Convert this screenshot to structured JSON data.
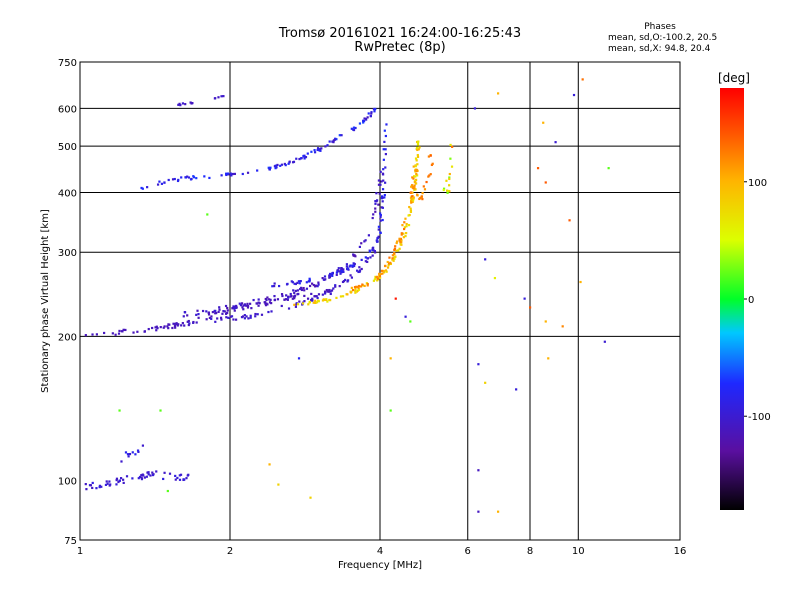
{
  "header": {
    "title_line1": "Tromsø 20161021 16:24:00-16:25:43",
    "title_line2": "RwPretec (8p)"
  },
  "stats": {
    "heading": "Phases",
    "line_o": "mean, sd,O:-100.2, 20.5",
    "line_x": "mean, sd,X:  94.8, 20.4"
  },
  "colorbar": {
    "label": "[deg]",
    "range": [
      -180,
      180
    ],
    "ticks": [
      100,
      0,
      -100
    ]
  },
  "chart_data": {
    "type": "scatter",
    "xlabel": "Frequency [MHz]",
    "ylabel": "Stationary phase Virtual Height [km]",
    "xscale": "log",
    "yscale": "log",
    "xlim": [
      1,
      16
    ],
    "ylim": [
      75,
      750
    ],
    "xticks": [
      1,
      2,
      4,
      6,
      8,
      10,
      16
    ],
    "yticks": [
      75,
      100,
      200,
      300,
      400,
      500,
      600,
      750
    ],
    "vgrid": [
      2,
      4,
      6,
      8,
      10
    ],
    "hgrid": [
      200,
      300,
      400,
      500,
      600
    ],
    "grid": true,
    "color_variable": "phase [deg]",
    "traces": [
      {
        "x": [
          1.0,
          1.15,
          1.3,
          1.45,
          1.6,
          1.75,
          1.9,
          2.05,
          2.2,
          2.4,
          2.6,
          2.8,
          3.0,
          3.2
        ],
        "y": [
          202,
          203,
          205,
          208,
          212,
          218,
          224,
          229,
          232,
          236,
          241,
          244,
          246,
          250
        ],
        "spread": 0.012,
        "n": 110,
        "phase": [
          -115,
          -110
        ]
      },
      {
        "x": [
          1.5,
          1.7,
          1.9,
          2.1,
          2.3,
          2.5,
          2.7,
          2.9,
          3.1,
          3.3,
          3.5,
          3.7,
          3.9
        ],
        "y": [
          212,
          214,
          217,
          219,
          222,
          228,
          233,
          238,
          244,
          255,
          265,
          280,
          300
        ],
        "spread": 0.01,
        "n": 80,
        "phase": [
          -115,
          -95
        ]
      },
      {
        "x": [
          1.6,
          1.8,
          2.0,
          2.2,
          2.4,
          2.6,
          2.8,
          3.0,
          3.2,
          3.4,
          3.6,
          3.8,
          3.95,
          4.05
        ],
        "y": [
          222,
          226,
          230,
          235,
          240,
          244,
          250,
          258,
          268,
          282,
          300,
          330,
          380,
          470
        ],
        "spread": 0.012,
        "n": 110,
        "phase": [
          -120,
          -95
        ]
      },
      {
        "x": [
          2.3,
          2.6,
          2.9,
          3.1,
          3.3,
          3.5,
          3.7,
          3.9,
          4.0,
          4.05,
          4.08,
          4.1
        ],
        "y": [
          255,
          258,
          262,
          267,
          272,
          280,
          290,
          305,
          330,
          380,
          450,
          560
        ],
        "spread": 0.008,
        "n": 90,
        "phase": [
          -105,
          -70
        ]
      },
      {
        "x": [
          1.3,
          1.45,
          1.6,
          1.8,
          2.0,
          2.2,
          2.4,
          2.6,
          2.8,
          3.0,
          3.2,
          3.4,
          3.6,
          3.8,
          3.95
        ],
        "y": [
          405,
          420,
          428,
          432,
          436,
          442,
          450,
          460,
          475,
          490,
          510,
          530,
          555,
          580,
          605
        ],
        "spread": 0.008,
        "n": 110,
        "phase": [
          -110,
          -65
        ]
      },
      {
        "x": [
          1.55,
          1.6,
          1.65,
          1.7
        ],
        "y": [
          610,
          612,
          615,
          618
        ],
        "spread": 0.004,
        "n": 8,
        "phase": [
          -110,
          -100
        ]
      },
      {
        "x": [
          1.85,
          1.9,
          1.95
        ],
        "y": [
          630,
          632,
          635
        ],
        "spread": 0.004,
        "n": 5,
        "phase": [
          -110,
          -100
        ]
      },
      {
        "x": [
          2.7,
          3.0,
          3.3,
          3.6,
          3.9,
          4.1,
          4.3,
          4.5,
          4.6,
          4.7,
          4.75,
          4.78
        ],
        "y": [
          232,
          236,
          242,
          250,
          262,
          275,
          295,
          330,
          370,
          420,
          470,
          520
        ],
        "spread": 0.008,
        "n": 120,
        "phase": [
          60,
          100
        ]
      },
      {
        "x": [
          3.5,
          3.8,
          4.0,
          4.2,
          4.4,
          4.55,
          4.65,
          4.72
        ],
        "y": [
          250,
          258,
          270,
          290,
          320,
          360,
          410,
          460
        ],
        "spread": 0.01,
        "n": 70,
        "phase": [
          100,
          130
        ]
      },
      {
        "x": [
          4.8,
          4.9,
          5.0,
          5.1
        ],
        "y": [
          390,
          400,
          440,
          480
        ],
        "spread": 0.015,
        "n": 20,
        "phase": [
          110,
          140
        ]
      },
      {
        "x": [
          5.4,
          5.45,
          5.5,
          5.55
        ],
        "y": [
          380,
          420,
          460,
          500
        ],
        "spread": 0.015,
        "n": 15,
        "phase": [
          20,
          140
        ]
      },
      {
        "x": [
          1.0,
          1.1,
          1.2,
          1.3,
          1.4,
          1.5,
          1.6,
          1.65
        ],
        "y": [
          97,
          98,
          100,
          102,
          103,
          102,
          101,
          103
        ],
        "spread": 0.015,
        "n": 60,
        "phase": [
          -110,
          -90
        ]
      },
      {
        "x": [
          1.2,
          1.25,
          1.3,
          1.35
        ],
        "y": [
          110,
          113,
          116,
          120
        ],
        "spread": 0.02,
        "n": 10,
        "phase": [
          -110,
          -80
        ]
      }
    ],
    "scatter": [
      {
        "x": 6.2,
        "y": 600,
        "phase": -95
      },
      {
        "x": 6.9,
        "y": 645,
        "phase": 100
      },
      {
        "x": 8.5,
        "y": 560,
        "phase": 100
      },
      {
        "x": 8.3,
        "y": 450,
        "phase": 140
      },
      {
        "x": 9.0,
        "y": 510,
        "phase": -100
      },
      {
        "x": 9.8,
        "y": 640,
        "phase": -95
      },
      {
        "x": 10.2,
        "y": 690,
        "phase": 130
      },
      {
        "x": 11.5,
        "y": 450,
        "phase": 20
      },
      {
        "x": 6.5,
        "y": 290,
        "phase": -95
      },
      {
        "x": 6.8,
        "y": 265,
        "phase": 60
      },
      {
        "x": 7.8,
        "y": 240,
        "phase": -95
      },
      {
        "x": 8.0,
        "y": 230,
        "phase": 140
      },
      {
        "x": 8.6,
        "y": 215,
        "phase": 100
      },
      {
        "x": 9.3,
        "y": 210,
        "phase": 120
      },
      {
        "x": 10.1,
        "y": 260,
        "phase": 100
      },
      {
        "x": 11.3,
        "y": 195,
        "phase": -100
      },
      {
        "x": 6.3,
        "y": 175,
        "phase": -95
      },
      {
        "x": 6.5,
        "y": 160,
        "phase": 80
      },
      {
        "x": 7.5,
        "y": 155,
        "phase": -95
      },
      {
        "x": 8.7,
        "y": 180,
        "phase": 100
      },
      {
        "x": 4.3,
        "y": 240,
        "phase": 170
      },
      {
        "x": 4.5,
        "y": 220,
        "phase": -95
      },
      {
        "x": 4.2,
        "y": 180,
        "phase": 100
      },
      {
        "x": 4.2,
        "y": 140,
        "phase": 20
      },
      {
        "x": 6.3,
        "y": 105,
        "phase": -110
      },
      {
        "x": 6.3,
        "y": 86,
        "phase": -110
      },
      {
        "x": 6.9,
        "y": 86,
        "phase": 100
      },
      {
        "x": 2.4,
        "y": 108,
        "phase": 100
      },
      {
        "x": 2.5,
        "y": 98,
        "phase": 80
      },
      {
        "x": 2.9,
        "y": 92,
        "phase": 80
      },
      {
        "x": 1.5,
        "y": 95,
        "phase": 20
      },
      {
        "x": 1.2,
        "y": 140,
        "phase": 20
      },
      {
        "x": 1.45,
        "y": 140,
        "phase": 20
      },
      {
        "x": 2.75,
        "y": 180,
        "phase": -80
      },
      {
        "x": 1.8,
        "y": 360,
        "phase": 20
      },
      {
        "x": 4.6,
        "y": 215,
        "phase": 20
      },
      {
        "x": 8.6,
        "y": 420,
        "phase": 140
      },
      {
        "x": 9.6,
        "y": 350,
        "phase": 140
      }
    ]
  }
}
